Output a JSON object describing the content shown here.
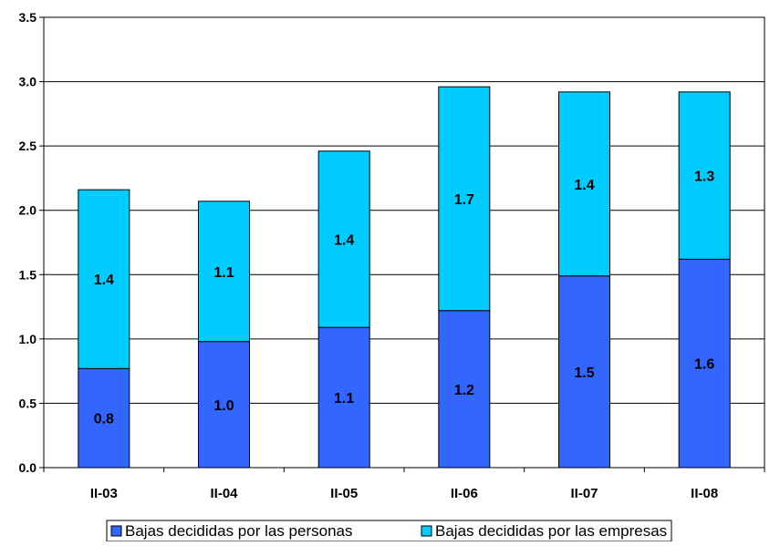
{
  "chart_data": {
    "type": "bar",
    "stacked": true,
    "categories": [
      "II-03",
      "II-04",
      "II-05",
      "II-06",
      "II-07",
      "II-08"
    ],
    "series": [
      {
        "name": "Bajas decididas por las personas",
        "values": [
          0.77,
          0.98,
          1.09,
          1.22,
          1.49,
          1.62
        ],
        "labels": [
          "0.8",
          "1.0",
          "1.1",
          "1.2",
          "1.5",
          "1.6"
        ],
        "color": "#3366ff"
      },
      {
        "name": "Bajas decididas por las empresas",
        "values": [
          1.39,
          1.09,
          1.37,
          1.74,
          1.43,
          1.3
        ],
        "labels": [
          "1.4",
          "1.1",
          "1.4",
          "1.7",
          "1.4",
          "1.3"
        ],
        "color": "#00ccff"
      }
    ],
    "y_ticks": [
      "0.0",
      "0.5",
      "1.0",
      "1.5",
      "2.0",
      "2.5",
      "3.0",
      "3.5"
    ],
    "ylim": [
      0,
      3.5
    ],
    "grid": true,
    "legend_position": "bottom"
  }
}
